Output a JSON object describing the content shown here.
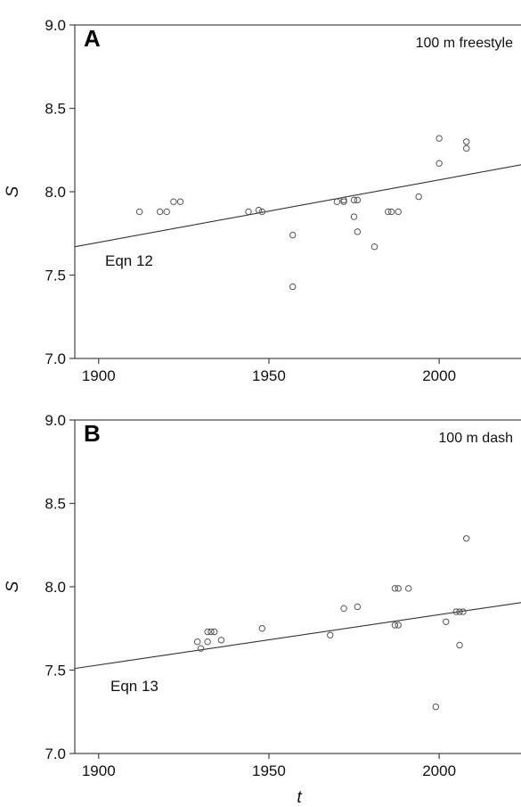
{
  "chart_data": [
    {
      "type": "scatter",
      "panel": "A",
      "title": "100 m freestyle",
      "xlabel": "",
      "ylabel": "S",
      "xlim": [
        1893,
        2029
      ],
      "ylim": [
        7.0,
        9.0
      ],
      "xticks": [
        "1900",
        "1950",
        "2000"
      ],
      "yticks": [
        "7.0",
        "7.5",
        "8.0",
        "8.5",
        "9.0"
      ],
      "fit_label": "Eqn 12",
      "fit_line": {
        "x": [
          1893,
          2029
        ],
        "y": [
          7.67,
          8.18
        ]
      },
      "points": [
        {
          "x": 1912,
          "y": 7.88
        },
        {
          "x": 1918,
          "y": 7.88
        },
        {
          "x": 1920,
          "y": 7.88
        },
        {
          "x": 1922,
          "y": 7.94
        },
        {
          "x": 1924,
          "y": 7.94
        },
        {
          "x": 1944,
          "y": 7.88
        },
        {
          "x": 1947,
          "y": 7.89
        },
        {
          "x": 1948,
          "y": 7.88
        },
        {
          "x": 1957,
          "y": 7.74
        },
        {
          "x": 1957,
          "y": 7.43
        },
        {
          "x": 1970,
          "y": 7.94
        },
        {
          "x": 1972,
          "y": 7.94
        },
        {
          "x": 1972,
          "y": 7.95
        },
        {
          "x": 1975,
          "y": 7.95
        },
        {
          "x": 1975,
          "y": 7.85
        },
        {
          "x": 1976,
          "y": 7.95
        },
        {
          "x": 1976,
          "y": 7.76
        },
        {
          "x": 1981,
          "y": 7.67
        },
        {
          "x": 1985,
          "y": 7.88
        },
        {
          "x": 1986,
          "y": 7.88
        },
        {
          "x": 1988,
          "y": 7.88
        },
        {
          "x": 1994,
          "y": 7.97
        },
        {
          "x": 2000,
          "y": 8.32
        },
        {
          "x": 2000,
          "y": 8.17
        },
        {
          "x": 2008,
          "y": 8.3
        },
        {
          "x": 2008,
          "y": 8.26
        }
      ]
    },
    {
      "type": "scatter",
      "panel": "B",
      "title": "100 m dash",
      "xlabel": "t",
      "ylabel": "S",
      "xlim": [
        1893,
        2029
      ],
      "ylim": [
        7.0,
        9.0
      ],
      "xticks": [
        "1900",
        "1950",
        "2000"
      ],
      "yticks": [
        "7.0",
        "7.5",
        "8.0",
        "8.5",
        "9.0"
      ],
      "fit_label": "Eqn 13",
      "fit_line": {
        "x": [
          1893,
          2029
        ],
        "y": [
          7.51,
          7.92
        ]
      },
      "points": [
        {
          "x": 1929,
          "y": 7.67
        },
        {
          "x": 1930,
          "y": 7.63
        },
        {
          "x": 1932,
          "y": 7.67
        },
        {
          "x": 1932,
          "y": 7.73
        },
        {
          "x": 1933,
          "y": 7.73
        },
        {
          "x": 1934,
          "y": 7.73
        },
        {
          "x": 1936,
          "y": 7.68
        },
        {
          "x": 1948,
          "y": 7.75
        },
        {
          "x": 1968,
          "y": 7.71
        },
        {
          "x": 1972,
          "y": 7.87
        },
        {
          "x": 1976,
          "y": 7.88
        },
        {
          "x": 1987,
          "y": 7.99
        },
        {
          "x": 1987,
          "y": 7.77
        },
        {
          "x": 1988,
          "y": 7.99
        },
        {
          "x": 1988,
          "y": 7.77
        },
        {
          "x": 1991,
          "y": 7.99
        },
        {
          "x": 1999,
          "y": 7.28
        },
        {
          "x": 2002,
          "y": 7.79
        },
        {
          "x": 2005,
          "y": 7.85
        },
        {
          "x": 2006,
          "y": 7.85
        },
        {
          "x": 2006,
          "y": 7.65
        },
        {
          "x": 2007,
          "y": 7.85
        },
        {
          "x": 2008,
          "y": 8.29
        }
      ]
    }
  ]
}
